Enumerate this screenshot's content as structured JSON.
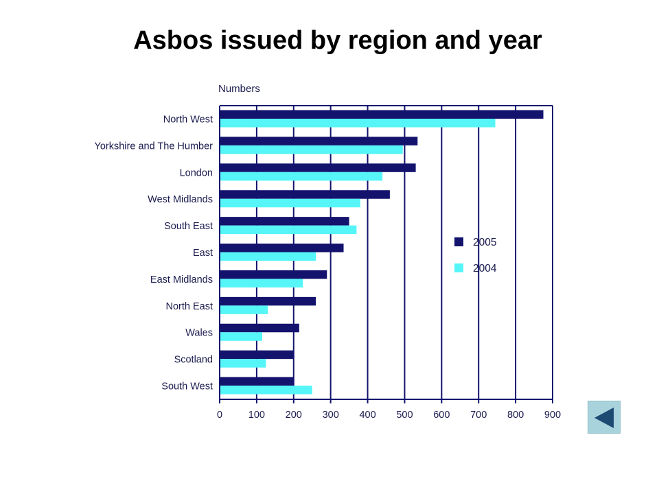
{
  "slide": {
    "title": "Asbos issued by region and year"
  },
  "nav": {
    "back_icon": "triangle-left-icon"
  },
  "colors": {
    "series_2005": "#13136e",
    "series_2004": "#55f5f8",
    "axis": "#13136e",
    "text": "#1a1a4e",
    "nav_button": "#a9d3dc",
    "nav_arrow": "#1c4a73"
  },
  "chart_data": {
    "type": "bar",
    "orientation": "horizontal",
    "title": "",
    "units_label": "Numbers",
    "xlabel": "",
    "ylabel": "",
    "xlim": [
      0,
      900
    ],
    "xticks": [
      0,
      100,
      200,
      300,
      400,
      500,
      600,
      700,
      800,
      900
    ],
    "grid": true,
    "legend_position": "right",
    "categories": [
      "North West",
      "Yorkshire and The Humber",
      "London",
      "West Midlands",
      "South East",
      "East",
      "East Midlands",
      "North East",
      "Wales",
      "Scotland",
      "South West"
    ],
    "series": [
      {
        "name": "2005",
        "values": [
          875,
          535,
          530,
          460,
          350,
          335,
          290,
          260,
          215,
          200,
          200
        ]
      },
      {
        "name": "2004",
        "values": [
          745,
          495,
          440,
          380,
          370,
          260,
          225,
          130,
          115,
          125,
          250
        ]
      }
    ]
  }
}
